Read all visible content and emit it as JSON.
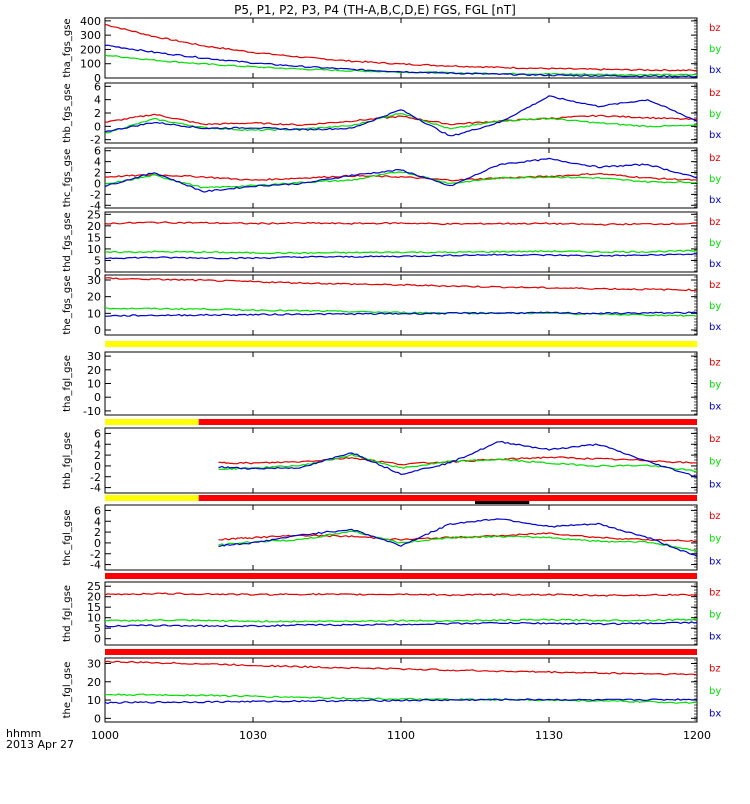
{
  "title": "P5, P1, P2, P3, P4 (TH-A,B,C,D,E) FGS, FGL [nT]",
  "time_label_top": "hhmm",
  "date_label": "2013 Apr 27",
  "x_ticks": [
    "1000",
    "1030",
    "1100",
    "1130",
    "1200"
  ],
  "colors": {
    "bx": "#0000cc",
    "by": "#00dd00",
    "bz": "#dd0000",
    "yellow": "#ffff00",
    "red": "#ff0000",
    "black": "#000000"
  },
  "chart_data": {
    "type": "line",
    "x": [
      0,
      10,
      20,
      30,
      40,
      50,
      60,
      70,
      80,
      90,
      100,
      110,
      120
    ],
    "x_unit": "minutes after 10:00",
    "xlim": [
      0,
      120
    ],
    "panels": [
      {
        "ylabel": "tha_fgs_gse",
        "ylim": [
          0,
          420
        ],
        "yticks": [
          "0",
          "100",
          "200",
          "300",
          "400"
        ],
        "ytick_values": [
          0,
          100,
          200,
          300,
          400
        ],
        "legend": [
          "bz",
          "by",
          "bx"
        ],
        "series": [
          {
            "name": "bz",
            "values": [
              375,
              290,
              225,
              180,
              145,
              118,
              98,
              85,
              74,
              66,
              60,
              56,
              53
            ]
          },
          {
            "name": "by",
            "values": [
              160,
              125,
              98,
              78,
              62,
              50,
              42,
              36,
              31,
              28,
              25,
              23,
              22
            ]
          },
          {
            "name": "bx",
            "values": [
              230,
              180,
              140,
              105,
              80,
              60,
              45,
              34,
              26,
              20,
              16,
              13,
              11
            ]
          }
        ]
      },
      {
        "ylabel": "thb_fgs_gse",
        "ylim": [
          -2.5,
          6.5
        ],
        "yticks": [
          "-2",
          "0",
          "2",
          "4",
          "6"
        ],
        "ytick_values": [
          -2,
          0,
          2,
          4,
          6
        ],
        "legend": [
          "bz",
          "by",
          "bx"
        ],
        "series": [
          {
            "name": "bz",
            "values": [
              0.6,
              1.8,
              0.3,
              0.5,
              0.2,
              0.8,
              1.5,
              0.3,
              0.8,
              1.2,
              1.6,
              1.3,
              1.0
            ]
          },
          {
            "name": "by",
            "values": [
              -1.0,
              1.1,
              -0.2,
              -0.6,
              -0.4,
              0.1,
              2.0,
              -0.4,
              0.8,
              1.2,
              0.5,
              0.0,
              0.1
            ]
          },
          {
            "name": "bx",
            "values": [
              -0.8,
              0.6,
              -0.3,
              -0.2,
              -0.5,
              -0.3,
              2.5,
              -1.5,
              0.6,
              4.5,
              3.0,
              4.0,
              0.8
            ]
          }
        ]
      },
      {
        "ylabel": "thc_fgs_gse",
        "ylim": [
          -4.5,
          6.5
        ],
        "yticks": [
          "-4",
          "-2",
          "0",
          "2",
          "4",
          "6"
        ],
        "ytick_values": [
          -4,
          -2,
          0,
          2,
          4,
          6
        ],
        "legend": [
          "bz",
          "by",
          "bx"
        ],
        "series": [
          {
            "name": "bz",
            "values": [
              1.2,
              1.6,
              1.2,
              0.6,
              1.0,
              1.4,
              1.2,
              0.6,
              1.0,
              1.3,
              1.8,
              1.0,
              0.6
            ]
          },
          {
            "name": "by",
            "values": [
              -0.2,
              1.5,
              -0.8,
              -0.4,
              0.2,
              0.6,
              2.2,
              0.0,
              1.0,
              1.2,
              1.0,
              0.3,
              0.2
            ]
          },
          {
            "name": "bx",
            "values": [
              -0.5,
              2.0,
              -1.5,
              -0.5,
              0.0,
              1.5,
              2.5,
              -0.5,
              3.5,
              4.5,
              3.0,
              3.5,
              1.0
            ]
          }
        ]
      },
      {
        "ylabel": "thd_fgs_gse",
        "ylim": [
          0,
          26
        ],
        "yticks": [
          "0",
          "5",
          "10",
          "15",
          "20",
          "25"
        ],
        "ytick_values": [
          0,
          5,
          10,
          15,
          20,
          25
        ],
        "legend": [
          "bz",
          "by",
          "bx"
        ],
        "series": [
          {
            "name": "bz",
            "values": [
              21.0,
              21.5,
              21.3,
              21.0,
              21.2,
              21.0,
              21.2,
              20.8,
              21.0,
              21.0,
              20.6,
              20.8,
              21.0
            ]
          },
          {
            "name": "by",
            "values": [
              8.5,
              8.8,
              8.6,
              8.3,
              8.2,
              8.4,
              8.6,
              8.5,
              8.8,
              9.0,
              8.7,
              8.8,
              9.2
            ]
          },
          {
            "name": "bx",
            "values": [
              6.0,
              6.3,
              6.1,
              6.0,
              6.5,
              6.6,
              6.8,
              7.2,
              7.5,
              7.3,
              7.0,
              7.3,
              7.8
            ]
          }
        ]
      },
      {
        "ylabel": "the_fgs_gse",
        "ylim": [
          -3,
          33
        ],
        "yticks": [
          "0",
          "10",
          "20",
          "30"
        ],
        "ytick_values": [
          0,
          10,
          20,
          30
        ],
        "legend": [
          "bz",
          "by",
          "bx"
        ],
        "series": [
          {
            "name": "bz",
            "values": [
              31.0,
              30.4,
              29.8,
              29.0,
              28.2,
              27.6,
              27.0,
              26.4,
              25.8,
              25.3,
              24.8,
              24.4,
              24.0
            ]
          },
          {
            "name": "by",
            "values": [
              13.0,
              12.8,
              12.6,
              12.0,
              11.5,
              11.0,
              10.5,
              10.3,
              10.2,
              10.0,
              9.5,
              9.0,
              8.5
            ]
          },
          {
            "name": "bx",
            "values": [
              8.5,
              8.8,
              9.0,
              9.2,
              9.5,
              9.6,
              9.8,
              10.0,
              10.2,
              10.3,
              10.0,
              10.2,
              10.4
            ]
          }
        ]
      },
      {
        "ylabel": "tha_fgl_gse",
        "ylim": [
          -13,
          33
        ],
        "yticks": [
          "-10",
          "0",
          "10",
          "20",
          "30"
        ],
        "ytick_values": [
          -10,
          0,
          10,
          20,
          30
        ],
        "legend": [
          "bz",
          "by",
          "bx"
        ],
        "series": []
      },
      {
        "ylabel": "thb_fgl_gse",
        "ylim": [
          -5,
          7
        ],
        "yticks": [
          "-4",
          "-2",
          "0",
          "2",
          "4",
          "6"
        ],
        "ytick_values": [
          -4,
          -2,
          0,
          2,
          4,
          6
        ],
        "legend": [
          "bz",
          "by",
          "bx"
        ],
        "x": [
          23,
          30,
          40,
          50,
          60,
          70,
          80,
          90,
          100,
          110,
          120
        ],
        "series": [
          {
            "name": "bz",
            "values": [
              0.6,
              0.5,
              0.8,
              1.5,
              0.3,
              0.8,
              1.2,
              1.6,
              1.3,
              1.0,
              0.5
            ]
          },
          {
            "name": "by",
            "values": [
              -0.6,
              -0.4,
              0.1,
              2.0,
              -0.4,
              0.8,
              1.2,
              0.5,
              0.0,
              0.1,
              -1.0
            ]
          },
          {
            "name": "bx",
            "values": [
              -0.2,
              -0.5,
              -0.3,
              2.5,
              -1.5,
              0.6,
              4.5,
              3.0,
              4.0,
              0.8,
              -2.0
            ]
          }
        ]
      },
      {
        "ylabel": "thc_fgl_gse",
        "ylim": [
          -5,
          7
        ],
        "yticks": [
          "-4",
          "-2",
          "0",
          "2",
          "4",
          "6"
        ],
        "ytick_values": [
          -4,
          -2,
          0,
          2,
          4,
          6
        ],
        "legend": [
          "bz",
          "by",
          "bx"
        ],
        "x": [
          23,
          30,
          40,
          50,
          60,
          70,
          80,
          90,
          100,
          110,
          120
        ],
        "series": [
          {
            "name": "bz",
            "values": [
              0.6,
              1.0,
              1.4,
              1.2,
              0.6,
              1.0,
              1.3,
              1.8,
              1.0,
              0.6,
              0.3
            ]
          },
          {
            "name": "by",
            "values": [
              -0.4,
              0.2,
              0.6,
              2.2,
              0.0,
              1.0,
              1.2,
              1.0,
              0.3,
              0.2,
              -1.5
            ]
          },
          {
            "name": "bx",
            "values": [
              -0.5,
              0.0,
              1.5,
              2.5,
              -0.5,
              3.5,
              4.5,
              3.0,
              3.5,
              1.0,
              -2.5
            ]
          }
        ]
      },
      {
        "ylabel": "thd_fgl_gse",
        "ylim": [
          -3,
          27
        ],
        "yticks": [
          "0",
          "5",
          "10",
          "15",
          "20",
          "25"
        ],
        "ytick_values": [
          0,
          5,
          10,
          15,
          20,
          25
        ],
        "legend": [
          "bz",
          "by",
          "bx"
        ],
        "series": [
          {
            "name": "bz",
            "values": [
              21.0,
              21.5,
              21.3,
              21.0,
              21.2,
              21.0,
              21.2,
              20.8,
              21.0,
              21.0,
              20.6,
              20.8,
              21.0
            ]
          },
          {
            "name": "by",
            "values": [
              8.5,
              8.8,
              8.6,
              8.3,
              8.2,
              8.4,
              8.6,
              8.5,
              8.8,
              9.0,
              8.7,
              8.8,
              9.2
            ]
          },
          {
            "name": "bx",
            "values": [
              6.0,
              6.3,
              6.1,
              6.0,
              6.5,
              6.6,
              6.8,
              7.2,
              7.5,
              7.3,
              7.0,
              7.3,
              7.8
            ]
          }
        ]
      },
      {
        "ylabel": "the_fgl_gse",
        "ylim": [
          -2,
          33
        ],
        "yticks": [
          "0",
          "10",
          "20",
          "30"
        ],
        "ytick_values": [
          0,
          10,
          20,
          30
        ],
        "legend": [
          "bz",
          "by",
          "bx"
        ],
        "series": [
          {
            "name": "bz",
            "values": [
              31.0,
              30.4,
              29.8,
              29.0,
              28.2,
              27.6,
              27.0,
              26.4,
              25.8,
              25.3,
              24.8,
              24.4,
              24.0
            ]
          },
          {
            "name": "by",
            "values": [
              13.0,
              12.8,
              12.6,
              12.0,
              11.5,
              11.0,
              10.5,
              10.3,
              10.2,
              10.0,
              9.5,
              9.0,
              8.5
            ]
          },
          {
            "name": "bx",
            "values": [
              8.5,
              8.8,
              9.0,
              9.2,
              9.5,
              9.6,
              9.8,
              10.0,
              10.2,
              10.3,
              10.0,
              10.2,
              10.4
            ]
          }
        ]
      }
    ],
    "status_bars": [
      {
        "after_panel": 4,
        "segments": [
          {
            "from": 0,
            "to": 120,
            "color": "yellow"
          }
        ]
      },
      {
        "after_panel": 5,
        "segments": [
          {
            "from": 0,
            "to": 19,
            "color": "yellow"
          },
          {
            "from": 19,
            "to": 120,
            "color": "red"
          }
        ]
      },
      {
        "after_panel": 6,
        "segments": [
          {
            "from": 0,
            "to": 19,
            "color": "yellow"
          },
          {
            "from": 19,
            "to": 120,
            "color": "red"
          }
        ],
        "black_segment": [
          75,
          86
        ]
      },
      {
        "after_panel": 7,
        "segments": [
          {
            "from": 0,
            "to": 120,
            "color": "red"
          }
        ]
      },
      {
        "after_panel": 8,
        "segments": [
          {
            "from": 0,
            "to": 120,
            "color": "red"
          }
        ]
      }
    ]
  }
}
